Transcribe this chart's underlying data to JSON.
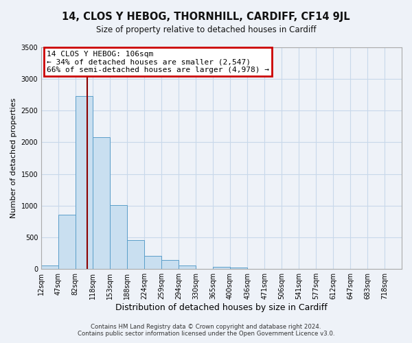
{
  "title1": "14, CLOS Y HEBOG, THORNHILL, CARDIFF, CF14 9JL",
  "title2": "Size of property relative to detached houses in Cardiff",
  "xlabel": "Distribution of detached houses by size in Cardiff",
  "ylabel": "Number of detached properties",
  "bins": [
    12,
    47,
    82,
    118,
    153,
    188,
    224,
    259,
    294,
    330,
    365,
    400,
    436,
    471,
    506,
    541,
    577,
    612,
    647,
    683,
    718
  ],
  "counts": [
    55,
    855,
    2730,
    2080,
    1010,
    455,
    205,
    145,
    55,
    0,
    35,
    20,
    0,
    0,
    0,
    0,
    0,
    0,
    0,
    0
  ],
  "bar_color": "#c9dff0",
  "bar_edge_color": "#5a9ec9",
  "vline_x": 106,
  "vline_color": "#8b0000",
  "annotation_line1": "14 CLOS Y HEBOG: 106sqm",
  "annotation_line2": "← 34% of detached houses are smaller (2,547)",
  "annotation_line3": "66% of semi-detached houses are larger (4,978) →",
  "annotation_box_color": "#ffffff",
  "annotation_box_edge_color": "#cc0000",
  "ylim": [
    0,
    3500
  ],
  "tick_labels": [
    "12sqm",
    "47sqm",
    "82sqm",
    "118sqm",
    "153sqm",
    "188sqm",
    "224sqm",
    "259sqm",
    "294sqm",
    "330sqm",
    "365sqm",
    "400sqm",
    "436sqm",
    "471sqm",
    "506sqm",
    "541sqm",
    "577sqm",
    "612sqm",
    "647sqm",
    "683sqm",
    "718sqm"
  ],
  "footnote1": "Contains HM Land Registry data © Crown copyright and database right 2024.",
  "footnote2": "Contains public sector information licensed under the Open Government Licence v3.0.",
  "bg_color": "#eef2f8",
  "grid_color": "#c8d8ea"
}
